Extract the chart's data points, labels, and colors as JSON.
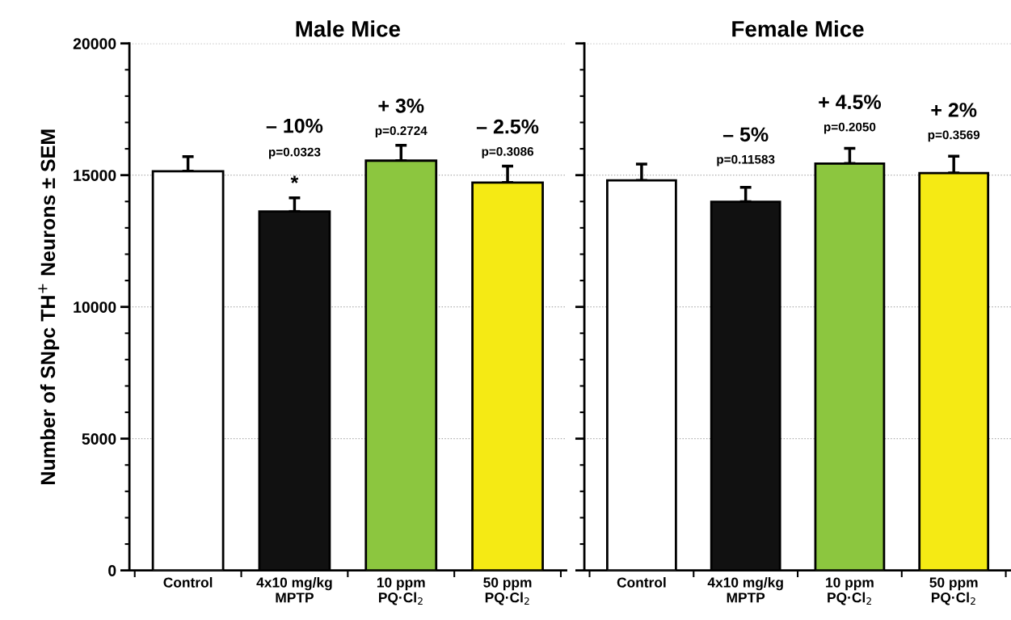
{
  "chart_data": [
    {
      "type": "bar",
      "title": "Male Mice",
      "ylabel": "Number of SNpc TH$^{+}$ Neurons ± SEM",
      "categories": [
        "Control",
        "4x10 mg/kg\nMPTP",
        "10 ppm\nPQ·Cl$_{2}$",
        "50 ppm\nPQ·Cl$_{2}$"
      ],
      "values": [
        15150,
        13620,
        15550,
        14720
      ],
      "errors": [
        550,
        520,
        580,
        620
      ],
      "colors": [
        "#ffffff",
        "#111111",
        "#8cc63f",
        "#f5ea14"
      ],
      "ylim": [
        0,
        20000
      ],
      "yticks": [
        0,
        5000,
        10000,
        15000,
        20000
      ],
      "grid": "y",
      "annotations": [
        "*",
        "p=0.0323",
        "– 10%",
        "p=0.2724",
        "+ 3%",
        "p=0.3086",
        "– 2.5%"
      ]
    },
    {
      "type": "bar",
      "title": "Female Mice",
      "tick_labels": "x",
      "categories": [
        "Control",
        "4x10 mg/kg\nMPTP",
        "10 ppm\nPQ·Cl$_{2}$",
        "50 ppm\nPQ·Cl$_{2}$"
      ],
      "values": [
        14800,
        13990,
        15440,
        15080
      ],
      "errors": [
        620,
        550,
        580,
        640
      ],
      "colors": [
        "#ffffff",
        "#111111",
        "#8cc63f",
        "#f5ea14"
      ],
      "ylim": [
        0,
        20000
      ],
      "yticks": [
        0,
        5000,
        10000,
        15000,
        20000
      ],
      "grid": "y",
      "annotations": [
        "p=0.11583",
        "– 5%",
        "p=0.2050",
        "+ 4.5%",
        "p=0.3569",
        "+ 2%"
      ]
    }
  ]
}
